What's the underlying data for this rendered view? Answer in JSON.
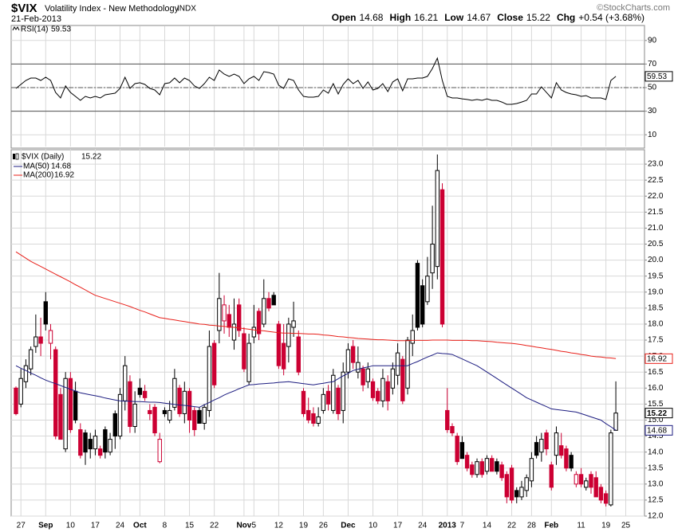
{
  "header": {
    "symbol": "$VIX",
    "name": "Volatility Index - New Methodology",
    "exchange": "INDX",
    "date": "21-Feb-2013",
    "quote": [
      {
        "label": "Open",
        "value": "14.68"
      },
      {
        "label": "High",
        "value": "16.21"
      },
      {
        "label": "Low",
        "value": "14.67"
      },
      {
        "label": "Close",
        "value": "15.22"
      },
      {
        "label": "Chg",
        "value": "+0.54 (+3.68%)"
      }
    ],
    "source": "©StockCharts.com"
  },
  "chart_data": [
    {
      "type": "line",
      "ylim": [
        0,
        100
      ],
      "yticks": [
        10,
        30,
        50,
        70,
        90
      ],
      "levels": [
        30,
        70
      ],
      "midline": 50,
      "grid": true,
      "series": [
        {
          "name": "RSI(14)",
          "color": "#000000",
          "values": [
            49.3,
            52.7,
            56.1,
            58.1,
            58.1,
            56.1,
            58.8,
            56.1,
            45.9,
            41.2,
            51.4,
            45.9,
            42.6,
            39.2,
            42.6,
            41.2,
            42.6,
            41.2,
            43.9,
            44.6,
            45.3,
            49.3,
            58.8,
            49.3,
            53.4,
            54.1,
            52.7,
            49.3,
            48.0,
            43.9,
            53.4,
            54.1,
            58.1,
            54.1,
            58.1,
            56.1,
            51.4,
            49.3,
            53.4,
            58.8,
            56.1,
            64.9,
            61.5,
            59.5,
            61.5,
            59.5,
            53.4,
            57.4,
            59.5,
            56.1,
            63.5,
            62.8,
            61.5,
            52.0,
            49.3,
            57.4,
            56.1,
            48.0,
            42.6,
            41.9,
            41.9,
            42.6,
            48.0,
            45.3,
            53.4,
            44.6,
            52.7,
            57.4,
            53.4,
            56.1,
            49.3,
            54.8,
            48.0,
            49.3,
            53.4,
            46.6,
            54.8,
            57.4,
            47.3,
            57.4,
            57.4,
            58.1,
            58.1,
            59.5,
            66.2,
            75.0,
            56.1,
            42.6,
            41.2,
            41.2,
            40.5,
            39.9,
            39.2,
            39.9,
            39.2,
            40.5,
            39.2,
            39.2,
            37.8,
            35.8,
            35.8,
            36.5,
            37.8,
            39.2,
            44.6,
            44.6,
            50.7,
            45.9,
            41.2,
            54.1,
            48.0,
            45.9,
            44.6,
            43.9,
            42.6,
            43.2,
            41.2,
            41.2,
            41.2,
            39.9,
            56.1,
            59.53,
            null,
            null
          ]
        }
      ]
    },
    {
      "type": "candlestick",
      "title": "$VIX (Daily)",
      "up_color": "#000000",
      "down_color": "#cc0033",
      "grid": true,
      "ylim": [
        12.0,
        23.4
      ],
      "yticks": [
        {
          "value": 12,
          "label": "12.0"
        },
        12.5,
        {
          "value": 13,
          "label": "13.0"
        },
        13.5,
        {
          "value": 14,
          "label": "14.0"
        },
        14.5,
        {
          "value": 15,
          "label": "15.0"
        },
        15.5,
        {
          "value": 16,
          "label": "16.0"
        },
        16.5,
        {
          "value": 17,
          "label": "17.0"
        },
        17.5,
        {
          "value": 18,
          "label": "18.0"
        },
        18.5,
        {
          "value": 19,
          "label": "19.0"
        },
        19.5,
        {
          "value": 20,
          "label": "20.0"
        },
        20.5,
        {
          "value": 21,
          "label": "21.0"
        },
        21.5,
        {
          "value": 22,
          "label": "22.0"
        },
        22.5,
        {
          "value": 23,
          "label": "23.0"
        }
      ],
      "categories": [
        null,
        "27",
        null,
        null,
        null,
        null,
        "Sep",
        null,
        null,
        null,
        null,
        "10",
        null,
        null,
        null,
        null,
        "17",
        null,
        null,
        null,
        null,
        "24",
        null,
        null,
        null,
        "Oct",
        null,
        null,
        null,
        null,
        "8",
        null,
        null,
        null,
        null,
        "15",
        null,
        null,
        null,
        null,
        "22",
        null,
        null,
        null,
        null,
        null,
        "Nov",
        null,
        "5",
        null,
        null,
        null,
        null,
        "12",
        null,
        null,
        null,
        null,
        "19",
        null,
        null,
        null,
        "26",
        null,
        null,
        null,
        null,
        "Dec",
        null,
        null,
        null,
        null,
        "10",
        null,
        null,
        null,
        null,
        "17",
        null,
        null,
        null,
        null,
        "24",
        null,
        null,
        null,
        null,
        "2013",
        null,
        null,
        "7",
        null,
        null,
        null,
        null,
        "14",
        null,
        null,
        null,
        null,
        "22",
        null,
        null,
        null,
        "28",
        null,
        null,
        null,
        "Feb",
        null,
        null,
        null,
        null,
        null,
        "11",
        null,
        null,
        null,
        null,
        "19",
        null,
        null,
        null,
        "25"
      ],
      "open": [
        16.0,
        15.5,
        16.2,
        16.6,
        17.3,
        17.6,
        18.7,
        17.4,
        17.2,
        15.8,
        14.1,
        16.3,
        15.9,
        14.7,
        14.6,
        14.4,
        14.1,
        14.1,
        14.7,
        14.0,
        15.2,
        14.5,
        15.6,
        16.2,
        14.8,
        16.0,
        15.9,
        15.3,
        15.4,
        13.7,
        15.3,
        15.0,
        15.4,
        16.0,
        15.2,
        15.9,
        15.3,
        15.3,
        14.9,
        15.3,
        17.4,
        17.8,
        18.1,
        18.3,
        17.5,
        18.6,
        17.7,
        16.2,
        17.6,
        18.4,
        18.0,
        18.8,
        18.9,
        18.0,
        17.4,
        17.3,
        17.9,
        17.6,
        15.9,
        15.3,
        15.2,
        14.9,
        15.3,
        15.9,
        15.3,
        16.0,
        15.3,
        16.5,
        17.3,
        16.5,
        16.6,
        16.2,
        16.2,
        15.9,
        15.6,
        16.2,
        16.0,
        16.4,
        16.9,
        16.0,
        17.4,
        19.9,
        19.2,
        18.7,
        19.6,
        19.8,
        22.2,
        15.3,
        14.8,
        14.5,
        14.3,
        13.9,
        13.6,
        13.3,
        13.7,
        13.4,
        13.8,
        13.7,
        13.6,
        13.3,
        13.5,
        12.8,
        12.6,
        12.8,
        13.1,
        14.3,
        14.0,
        14.6,
        13.6,
        13.9,
        14.2,
        14.1,
        13.9,
        13.0,
        13.3,
        12.9,
        13.3,
        13.2,
        12.9,
        12.7,
        12.35,
        14.68,
        null,
        null
      ],
      "high": [
        16.05,
        16.6,
        16.9,
        17.3,
        18.3,
        18.2,
        19.0,
        18.0,
        17.3,
        16.0,
        16.5,
        16.5,
        16.2,
        14.9,
        14.7,
        14.6,
        14.7,
        14.2,
        14.8,
        14.6,
        15.3,
        16.0,
        17.0,
        16.4,
        15.9,
        16.3,
        16.1,
        15.5,
        15.5,
        14.6,
        15.4,
        15.6,
        16.6,
        16.1,
        16.2,
        16.0,
        15.4,
        15.4,
        15.5,
        17.8,
        17.5,
        19.6,
        18.9,
        18.6,
        18.8,
        18.8,
        17.9,
        17.7,
        18.6,
        18.5,
        19.4,
        19.0,
        19.0,
        18.1,
        18.0,
        18.2,
        18.7,
        17.8,
        16.0,
        15.7,
        15.4,
        15.4,
        16.0,
        16.1,
        16.6,
        16.1,
        16.8,
        17.4,
        17.5,
        17.3,
        16.7,
        16.8,
        16.3,
        16.0,
        16.6,
        16.4,
        16.8,
        17.4,
        17.0,
        17.6,
        18.3,
        20.0,
        19.4,
        20.1,
        21.7,
        23.3,
        22.4,
        16.0,
        14.9,
        14.6,
        14.5,
        14.0,
        13.7,
        13.8,
        13.8,
        13.9,
        13.9,
        13.8,
        13.7,
        13.4,
        13.6,
        12.9,
        13.1,
        13.3,
        14.0,
        14.5,
        14.6,
        14.7,
        13.7,
        14.8,
        14.6,
        14.2,
        14.0,
        13.4,
        13.5,
        13.2,
        13.4,
        13.4,
        13.0,
        12.8,
        14.7,
        16.21,
        null,
        null
      ],
      "low": [
        15.15,
        15.4,
        16.0,
        16.4,
        17.1,
        17.0,
        17.8,
        16.9,
        14.4,
        14.4,
        14.0,
        14.6,
        14.9,
        13.8,
        13.6,
        13.8,
        13.9,
        13.8,
        13.8,
        13.9,
        14.1,
        14.4,
        15.3,
        14.6,
        14.6,
        15.7,
        15.6,
        15.0,
        14.5,
        13.65,
        15.1,
        14.9,
        15.3,
        15.1,
        14.9,
        14.6,
        14.5,
        14.9,
        14.7,
        15.1,
        16.0,
        17.4,
        17.7,
        17.6,
        17.2,
        17.6,
        16.5,
        16.1,
        17.4,
        17.5,
        17.9,
        18.4,
        18.6,
        16.6,
        16.4,
        16.8,
        17.6,
        16.4,
        15.1,
        14.9,
        14.8,
        14.8,
        15.2,
        15.3,
        15.2,
        15.0,
        14.9,
        16.3,
        16.6,
        16.3,
        15.9,
        16.0,
        15.6,
        15.5,
        15.4,
        15.3,
        15.8,
        16.1,
        15.5,
        15.8,
        17.0,
        17.8,
        17.9,
        18.6,
        19.1,
        19.4,
        17.9,
        14.6,
        14.5,
        13.6,
        13.8,
        13.4,
        13.2,
        13.2,
        13.2,
        13.3,
        13.4,
        13.3,
        13.1,
        12.4,
        12.4,
        12.4,
        12.5,
        12.6,
        12.9,
        13.8,
        13.7,
        13.9,
        12.8,
        13.6,
        13.8,
        13.4,
        13.4,
        12.9,
        12.9,
        12.8,
        12.7,
        12.6,
        12.4,
        12.3,
        12.3,
        14.67,
        null,
        null
      ],
      "close": [
        15.2,
        16.3,
        16.7,
        17.2,
        17.6,
        17.4,
        18.0,
        17.8,
        14.5,
        14.4,
        16.3,
        14.7,
        15.0,
        13.9,
        14.0,
        14.1,
        14.5,
        13.9,
        14.0,
        14.4,
        14.5,
        15.8,
        16.7,
        14.8,
        15.5,
        15.8,
        15.7,
        15.2,
        14.6,
        14.4,
        15.2,
        15.3,
        16.3,
        15.2,
        15.9,
        15.0,
        14.7,
        14.9,
        15.4,
        17.3,
        16.1,
        18.8,
        18.6,
        17.9,
        18.0,
        17.8,
        16.6,
        17.4,
        17.9,
        17.7,
        18.8,
        18.5,
        18.6,
        16.7,
        16.6,
        18.0,
        18.1,
        16.5,
        15.2,
        15.0,
        14.9,
        15.1,
        15.8,
        15.5,
        16.4,
        15.2,
        16.5,
        17.2,
        16.8,
        16.8,
        16.1,
        16.6,
        15.7,
        15.6,
        16.3,
        15.6,
        16.6,
        17.1,
        15.6,
        17.5,
        17.8,
        17.9,
        18.0,
        19.5,
        20.5,
        22.8,
        18.0,
        14.7,
        14.6,
        13.7,
        13.8,
        13.5,
        13.3,
        13.7,
        13.3,
        13.8,
        13.4,
        13.4,
        13.2,
        12.6,
        12.5,
        12.6,
        12.9,
        13.2,
        13.8,
        13.9,
        14.4,
        14.1,
        12.9,
        14.6,
        13.9,
        13.5,
        13.5,
        13.3,
        13.0,
        13.1,
        12.9,
        12.6,
        12.5,
        12.4,
        14.6,
        15.22,
        null,
        null
      ],
      "series": [
        {
          "name": "MA(50)",
          "color": "#1c1c80",
          "values": [
            16.7,
            16.62,
            16.55,
            16.47,
            16.4,
            16.32,
            16.25,
            16.19,
            16.14,
            16.08,
            16.02,
            15.96,
            15.91,
            15.85,
            15.82,
            15.79,
            15.76,
            15.73,
            15.69,
            15.66,
            15.63,
            15.6,
            15.59,
            15.59,
            15.58,
            15.58,
            15.57,
            15.56,
            15.56,
            15.55,
            15.53,
            15.51,
            15.49,
            15.47,
            15.46,
            15.44,
            15.42,
            15.4,
            15.48,
            15.55,
            15.63,
            15.7,
            15.78,
            15.85,
            15.91,
            15.98,
            16.04,
            16.1,
            16.11,
            16.13,
            16.14,
            16.15,
            16.16,
            16.18,
            16.19,
            16.2,
            16.18,
            16.16,
            16.14,
            16.12,
            16.1,
            16.13,
            16.15,
            16.18,
            16.2,
            16.29,
            16.38,
            16.46,
            16.55,
            16.59,
            16.63,
            16.66,
            16.7,
            16.7,
            16.7,
            16.7,
            16.7,
            16.7,
            16.7,
            16.7,
            16.77,
            16.83,
            16.9,
            16.97,
            17.03,
            17.1,
            17.08,
            17.07,
            17.05,
            16.98,
            16.91,
            16.84,
            16.77,
            16.7,
            16.6,
            16.5,
            16.4,
            16.3,
            16.2,
            16.1,
            16.0,
            15.9,
            15.8,
            15.7,
            15.63,
            15.56,
            15.49,
            15.42,
            15.35,
            15.33,
            15.31,
            15.29,
            15.27,
            15.25,
            15.2,
            15.15,
            15.1,
            15.05,
            15.0,
            14.89,
            14.79,
            14.68,
            null,
            null
          ]
        },
        {
          "name": "MA(200)",
          "color": "#e8201a",
          "values": [
            20.26,
            20.16,
            20.06,
            19.96,
            19.88,
            19.8,
            19.72,
            19.64,
            19.56,
            19.48,
            19.4,
            19.32,
            19.23,
            19.15,
            19.07,
            18.98,
            18.9,
            18.85,
            18.8,
            18.75,
            18.7,
            18.65,
            18.6,
            18.55,
            18.49,
            18.43,
            18.38,
            18.32,
            18.26,
            18.2,
            18.18,
            18.15,
            18.13,
            18.1,
            18.08,
            18.05,
            18.03,
            18.0,
            17.99,
            17.97,
            17.96,
            17.94,
            17.93,
            17.91,
            17.9,
            17.88,
            17.86,
            17.84,
            17.82,
            17.8,
            17.79,
            17.77,
            17.75,
            17.73,
            17.72,
            17.72,
            17.71,
            17.71,
            17.7,
            17.69,
            17.69,
            17.68,
            17.66,
            17.65,
            17.63,
            17.61,
            17.6,
            17.58,
            17.57,
            17.55,
            17.54,
            17.53,
            17.52,
            17.51,
            17.51,
            17.5,
            17.49,
            17.48,
            17.48,
            17.48,
            17.49,
            17.49,
            17.49,
            17.49,
            17.5,
            17.5,
            17.5,
            17.5,
            17.49,
            17.49,
            17.49,
            17.49,
            17.48,
            17.48,
            17.47,
            17.46,
            17.45,
            17.43,
            17.42,
            17.41,
            17.4,
            17.38,
            17.36,
            17.33,
            17.31,
            17.28,
            17.26,
            17.23,
            17.21,
            17.18,
            17.15,
            17.13,
            17.1,
            17.08,
            17.05,
            17.03,
            17.0,
            16.98,
            16.97,
            16.95,
            16.94,
            16.92,
            null,
            null
          ]
        }
      ]
    }
  ]
}
